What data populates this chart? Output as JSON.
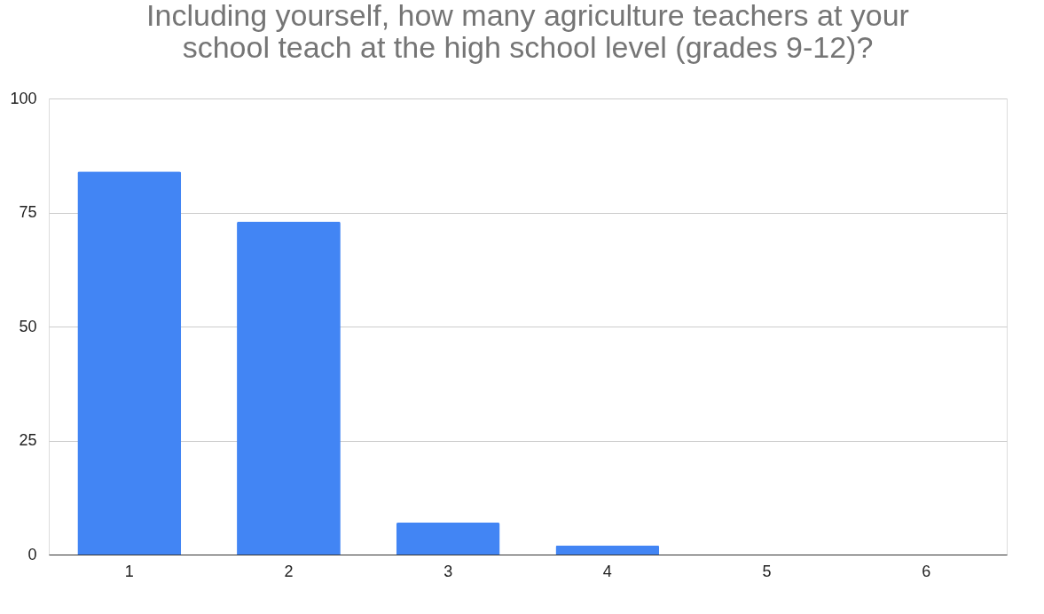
{
  "chart_data": {
    "type": "bar",
    "title": [
      "Including yourself, how many agriculture teachers at your",
      "school teach at the high school level (grades 9-12)?"
    ],
    "categories": [
      "1",
      "2",
      "3",
      "4",
      "5",
      "6"
    ],
    "values": [
      84,
      73,
      7,
      2,
      0,
      0
    ],
    "color": "#4285f4",
    "ylim": [
      0,
      100
    ],
    "yticks": [
      0,
      25,
      50,
      75,
      100
    ],
    "grid": "y"
  }
}
